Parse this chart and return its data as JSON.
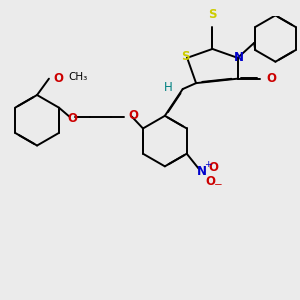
{
  "bg_color": "#ebebeb",
  "bond_color": "#000000",
  "S_color": "#cccc00",
  "N_color": "#0000cc",
  "O_color": "#cc0000",
  "H_color": "#008080",
  "lw": 1.4,
  "dbo": 0.018,
  "fs": 8.5,
  "xlim": [
    0,
    10
  ],
  "ylim": [
    -1,
    8
  ]
}
